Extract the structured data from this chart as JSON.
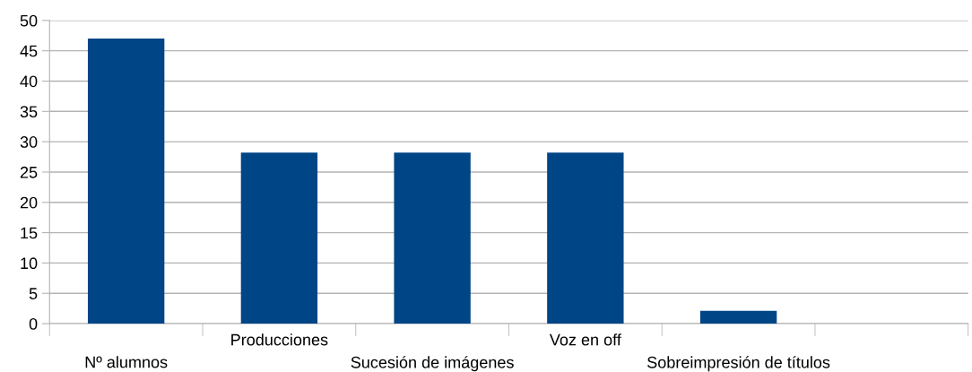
{
  "chart_data": {
    "type": "bar",
    "categories": [
      "Nº alumnos",
      "Producciones",
      "Sucesión de imágenes",
      "Voz en off",
      "Sobreimpresión de títulos",
      null
    ],
    "values": [
      47,
      28.2,
      28.2,
      28.2,
      2.1,
      null
    ],
    "color": "#004586",
    "ylim": [
      0,
      50
    ],
    "yticks": [
      0,
      5,
      10,
      15,
      20,
      25,
      30,
      35,
      40,
      45,
      50
    ],
    "grid": "y",
    "legend": false
  }
}
